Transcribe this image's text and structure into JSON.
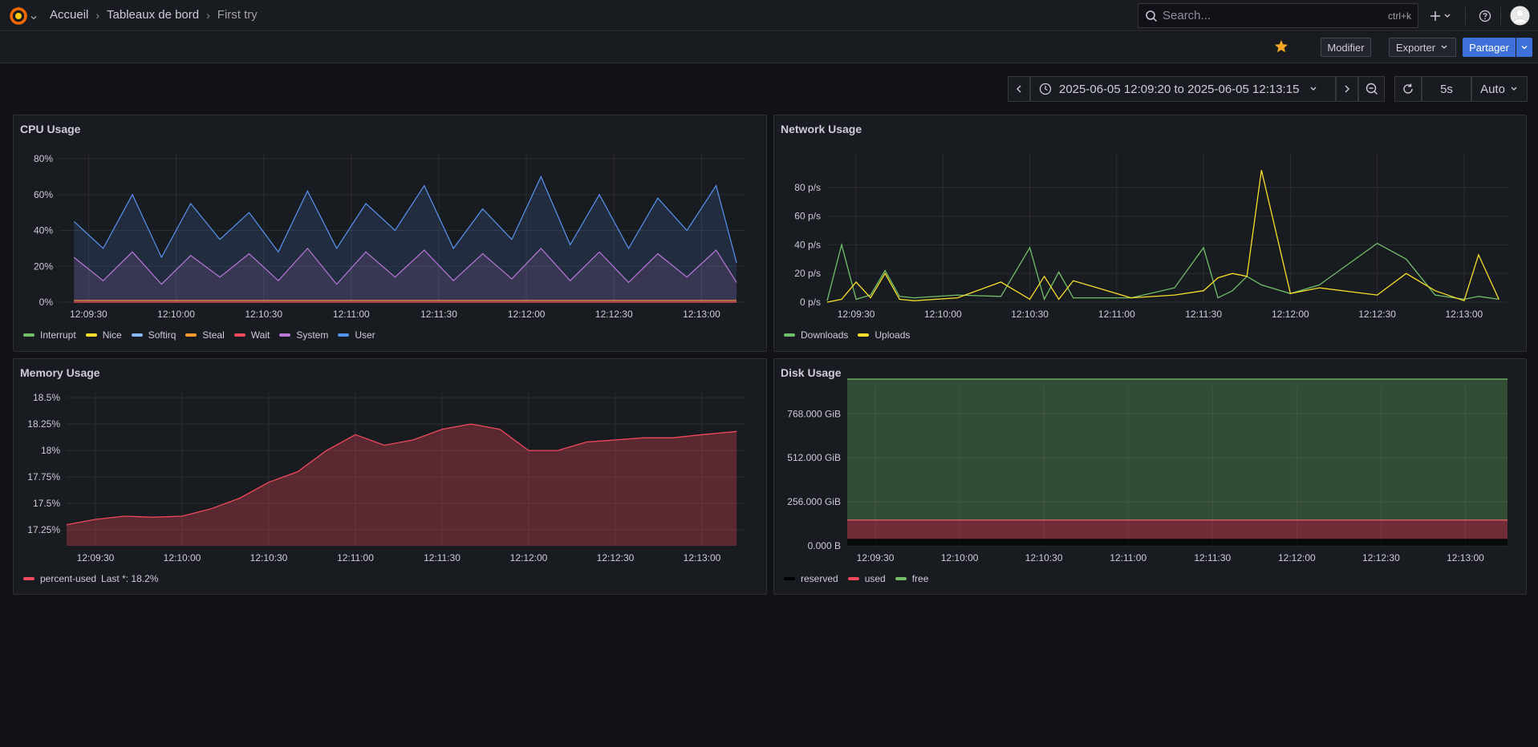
{
  "breadcrumb": {
    "home": "Accueil",
    "dashboards": "Tableaux de bord",
    "current": "First try"
  },
  "search": {
    "placeholder": "Search...",
    "shortcut": "ctrl+k"
  },
  "actions": {
    "edit": "Modifier",
    "export": "Exporter",
    "share": "Partager"
  },
  "time": {
    "range": "2025-06-05 12:09:20 to 2025-06-05 12:13:15",
    "refresh_interval": "5s",
    "auto": "Auto"
  },
  "colors": {
    "background": "#111217",
    "panel": "#181b1f",
    "accent": "#3d71d9",
    "star": "#f5a623"
  },
  "panels": {
    "cpu": {
      "title": "CPU Usage",
      "legend": [
        {
          "name": "Interrupt",
          "color": "#73bf69"
        },
        {
          "name": "Nice",
          "color": "#fade2a"
        },
        {
          "name": "Softirq",
          "color": "#8ab8ff"
        },
        {
          "name": "Steal",
          "color": "#ff9830"
        },
        {
          "name": "Wait",
          "color": "#f2495c"
        },
        {
          "name": "System",
          "color": "#b877d9"
        },
        {
          "name": "User",
          "color": "#5794f2"
        }
      ]
    },
    "network": {
      "title": "Network Usage",
      "legend": [
        {
          "name": "Downloads",
          "color": "#73bf69"
        },
        {
          "name": "Uploads",
          "color": "#fade2a"
        }
      ]
    },
    "memory": {
      "title": "Memory Usage",
      "legend": [
        {
          "name": "percent-used",
          "color": "#f2495c"
        }
      ],
      "legend_extra": "Last *: 18.2%"
    },
    "disk": {
      "title": "Disk Usage",
      "legend": [
        {
          "name": "reserved",
          "color": "#000000"
        },
        {
          "name": "used",
          "color": "#f2495c"
        },
        {
          "name": "free",
          "color": "#73bf69"
        }
      ]
    }
  },
  "chart_data": [
    {
      "type": "area",
      "panel": "cpu",
      "ylabel": "",
      "ylim": [
        0,
        80
      ],
      "yticks": [
        "0%",
        "20%",
        "40%",
        "60%",
        "80%"
      ],
      "xticks": [
        "12:09:30",
        "12:10:00",
        "12:10:30",
        "12:11:00",
        "12:11:30",
        "12:12:00",
        "12:12:30",
        "12:13:00"
      ],
      "x": [
        "12:09:25",
        "12:09:35",
        "12:09:45",
        "12:09:55",
        "12:10:05",
        "12:10:15",
        "12:10:25",
        "12:10:35",
        "12:10:45",
        "12:10:55",
        "12:11:05",
        "12:11:15",
        "12:11:25",
        "12:11:35",
        "12:11:45",
        "12:11:55",
        "12:12:05",
        "12:12:15",
        "12:12:25",
        "12:12:35",
        "12:12:45",
        "12:12:55",
        "12:13:05",
        "12:13:12"
      ],
      "series": [
        {
          "name": "User",
          "values": [
            45,
            30,
            60,
            25,
            55,
            35,
            50,
            28,
            62,
            30,
            55,
            40,
            65,
            30,
            52,
            35,
            70,
            32,
            60,
            30,
            58,
            40,
            65,
            22
          ]
        },
        {
          "name": "System",
          "values": [
            25,
            12,
            28,
            10,
            26,
            14,
            27,
            12,
            30,
            10,
            28,
            14,
            29,
            12,
            27,
            13,
            30,
            12,
            28,
            11,
            27,
            14,
            29,
            11
          ]
        },
        {
          "name": "Steal",
          "values": [
            1,
            1,
            1,
            1,
            1,
            1,
            1,
            1,
            1,
            1,
            1,
            1,
            1,
            1,
            1,
            1,
            1,
            1,
            1,
            1,
            1,
            1,
            1,
            1
          ]
        },
        {
          "name": "Wait",
          "values": [
            0,
            0,
            0,
            0,
            0,
            0,
            0,
            0,
            0,
            0,
            0,
            0,
            0,
            0,
            0,
            0,
            0,
            0,
            0,
            0,
            0,
            0,
            0,
            0
          ]
        }
      ]
    },
    {
      "type": "line",
      "panel": "network",
      "ylim": [
        0,
        100
      ],
      "yticks": [
        "0 p/s",
        "20 p/s",
        "40 p/s",
        "60 p/s",
        "80 p/s"
      ],
      "xticks": [
        "12:09:30",
        "12:10:00",
        "12:10:30",
        "12:11:00",
        "12:11:30",
        "12:12:00",
        "12:12:30",
        "12:13:00"
      ],
      "x": [
        "12:09:20",
        "12:09:25",
        "12:09:30",
        "12:09:35",
        "12:09:40",
        "12:09:45",
        "12:09:50",
        "12:10:05",
        "12:10:20",
        "12:10:30",
        "12:10:35",
        "12:10:40",
        "12:10:45",
        "12:11:05",
        "12:11:20",
        "12:11:30",
        "12:11:35",
        "12:11:40",
        "12:11:45",
        "12:11:50",
        "12:12:00",
        "12:12:10",
        "12:12:30",
        "12:12:40",
        "12:12:50",
        "12:13:00",
        "12:13:05",
        "12:13:12"
      ],
      "series": [
        {
          "name": "Downloads",
          "values": [
            1,
            40,
            2,
            5,
            22,
            4,
            3,
            5,
            4,
            38,
            2,
            21,
            3,
            3,
            10,
            38,
            3,
            8,
            18,
            12,
            6,
            12,
            41,
            30,
            5,
            2,
            4,
            2
          ]
        },
        {
          "name": "Uploads",
          "values": [
            0,
            2,
            14,
            3,
            20,
            2,
            1,
            3,
            14,
            2,
            18,
            2,
            15,
            3,
            5,
            8,
            17,
            20,
            18,
            92,
            6,
            10,
            5,
            20,
            8,
            1,
            33,
            2
          ]
        }
      ]
    },
    {
      "type": "area",
      "panel": "memory",
      "ylim": [
        17.1,
        18.5
      ],
      "yticks": [
        "17.25%",
        "17.5%",
        "17.75%",
        "18%",
        "18.25%",
        "18.5%"
      ],
      "xticks": [
        "12:09:30",
        "12:10:00",
        "12:10:30",
        "12:11:00",
        "12:11:30",
        "12:12:00",
        "12:12:30",
        "12:13:00"
      ],
      "x": [
        "12:09:20",
        "12:09:30",
        "12:09:40",
        "12:09:50",
        "12:10:00",
        "12:10:10",
        "12:10:20",
        "12:10:30",
        "12:10:40",
        "12:10:50",
        "12:11:00",
        "12:11:10",
        "12:11:20",
        "12:11:30",
        "12:11:40",
        "12:11:50",
        "12:12:00",
        "12:12:10",
        "12:12:20",
        "12:12:30",
        "12:12:40",
        "12:12:50",
        "12:13:00",
        "12:13:12"
      ],
      "series": [
        {
          "name": "percent-used",
          "values": [
            17.3,
            17.35,
            17.38,
            17.37,
            17.38,
            17.45,
            17.55,
            17.7,
            17.8,
            18.0,
            18.15,
            18.05,
            18.1,
            18.2,
            18.25,
            18.2,
            18.0,
            18.0,
            18.08,
            18.1,
            18.12,
            18.12,
            18.15,
            18.18
          ]
        }
      ]
    },
    {
      "type": "area",
      "panel": "disk",
      "ylim": [
        0,
        900
      ],
      "yticks": [
        "0.000 B",
        "256.000 GiB",
        "512.000 GiB",
        "768.000 GiB"
      ],
      "xticks": [
        "12:09:30",
        "12:10:00",
        "12:10:30",
        "12:11:00",
        "12:11:30",
        "12:12:00",
        "12:12:30",
        "12:13:00"
      ],
      "series": [
        {
          "name": "reserved",
          "values": [
            40,
            40
          ]
        },
        {
          "name": "used",
          "values": [
            110,
            110
          ]
        },
        {
          "name": "free",
          "values": [
            820,
            820
          ]
        }
      ]
    }
  ]
}
